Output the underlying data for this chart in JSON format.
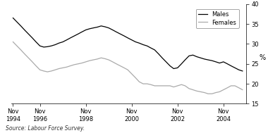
{
  "title": "",
  "source_text": "Source: Labour Force Survey.",
  "ylabel": "%",
  "ylim": [
    15,
    40
  ],
  "yticks": [
    15,
    20,
    25,
    30,
    35,
    40
  ],
  "legend_labels": [
    "Males",
    "Females"
  ],
  "line_colors": [
    "#000000",
    "#aaaaaa"
  ],
  "males": {
    "x": [
      1994.83,
      1995.0,
      1995.17,
      1995.33,
      1995.5,
      1995.67,
      1995.83,
      1996.0,
      1996.17,
      1996.33,
      1996.5,
      1996.67,
      1996.83,
      1997.0,
      1997.17,
      1997.33,
      1997.5,
      1997.67,
      1997.83,
      1998.0,
      1998.17,
      1998.33,
      1998.5,
      1998.67,
      1998.83,
      1999.0,
      1999.17,
      1999.33,
      1999.5,
      1999.67,
      1999.83,
      2000.0,
      2000.17,
      2000.33,
      2000.5,
      2000.67,
      2000.83,
      2001.0,
      2001.17,
      2001.33,
      2001.5,
      2001.67,
      2001.83,
      2002.0,
      2002.17,
      2002.33,
      2002.5,
      2002.67,
      2002.83,
      2003.0,
      2003.17,
      2003.33,
      2003.5,
      2003.67,
      2003.83,
      2004.0,
      2004.17,
      2004.33,
      2004.5,
      2004.67,
      2004.83
    ],
    "y": [
      36.5,
      35.5,
      34.5,
      33.5,
      32.5,
      31.5,
      30.5,
      29.5,
      29.2,
      29.3,
      29.5,
      29.8,
      30.2,
      30.5,
      31.0,
      31.5,
      32.0,
      32.5,
      33.0,
      33.5,
      33.8,
      34.0,
      34.2,
      34.5,
      34.3,
      34.0,
      33.5,
      33.0,
      32.5,
      32.0,
      31.5,
      31.0,
      30.5,
      30.2,
      29.8,
      29.5,
      29.0,
      28.5,
      27.5,
      26.5,
      25.5,
      24.5,
      23.8,
      24.0,
      25.0,
      26.0,
      27.0,
      27.2,
      26.8,
      26.5,
      26.2,
      26.0,
      25.8,
      25.5,
      25.2,
      25.5,
      25.0,
      24.5,
      24.0,
      23.5,
      23.2
    ]
  },
  "females": {
    "x": [
      1994.83,
      1995.0,
      1995.17,
      1995.33,
      1995.5,
      1995.67,
      1995.83,
      1996.0,
      1996.17,
      1996.33,
      1996.5,
      1996.67,
      1996.83,
      1997.0,
      1997.17,
      1997.33,
      1997.5,
      1997.67,
      1997.83,
      1998.0,
      1998.17,
      1998.33,
      1998.5,
      1998.67,
      1998.83,
      1999.0,
      1999.17,
      1999.33,
      1999.5,
      1999.67,
      1999.83,
      2000.0,
      2000.17,
      2000.33,
      2000.5,
      2000.67,
      2000.83,
      2001.0,
      2001.17,
      2001.33,
      2001.5,
      2001.67,
      2001.83,
      2002.0,
      2002.17,
      2002.33,
      2002.5,
      2002.67,
      2002.83,
      2003.0,
      2003.17,
      2003.33,
      2003.5,
      2003.67,
      2003.83,
      2004.0,
      2004.17,
      2004.33,
      2004.5,
      2004.67,
      2004.83
    ],
    "y": [
      30.5,
      29.5,
      28.5,
      27.5,
      26.5,
      25.5,
      24.5,
      23.5,
      23.2,
      23.0,
      23.2,
      23.5,
      23.8,
      24.0,
      24.2,
      24.5,
      24.8,
      25.0,
      25.2,
      25.5,
      25.8,
      26.0,
      26.2,
      26.5,
      26.3,
      26.0,
      25.5,
      25.0,
      24.5,
      24.0,
      23.5,
      22.5,
      21.5,
      20.5,
      20.0,
      20.0,
      19.8,
      19.5,
      19.5,
      19.5,
      19.5,
      19.5,
      19.2,
      19.5,
      19.8,
      19.5,
      18.8,
      18.5,
      18.2,
      18.0,
      17.8,
      17.5,
      17.5,
      17.8,
      18.0,
      18.5,
      19.0,
      19.5,
      19.5,
      19.0,
      18.5
    ]
  },
  "xtick_positions": [
    1994.83,
    1996.0,
    1998.0,
    2000.0,
    2002.0,
    2004.0
  ],
  "xtick_labels": [
    "Nov\n1994",
    "Nov\n1996",
    "Nov\n1998",
    "Nov\n2000",
    "Nov\n2002",
    "Nov\n2004"
  ],
  "xlim": [
    1994.75,
    2005.0
  ]
}
